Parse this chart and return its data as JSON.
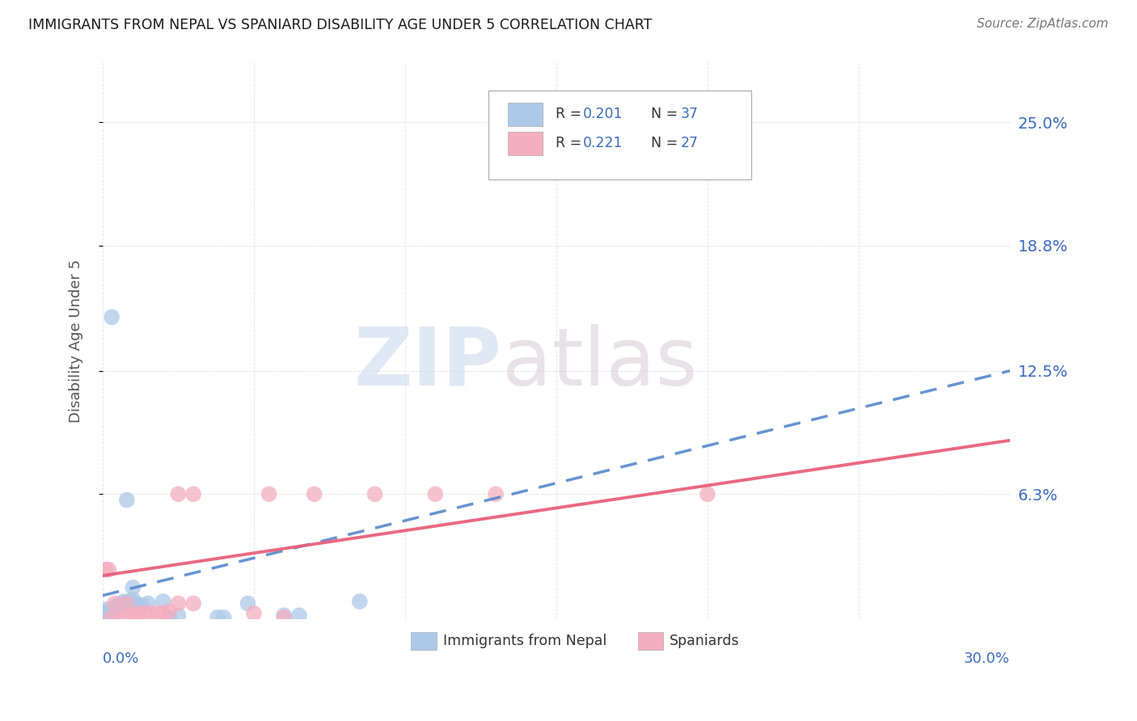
{
  "title": "IMMIGRANTS FROM NEPAL VS SPANIARD DISABILITY AGE UNDER 5 CORRELATION CHART",
  "source": "Source: ZipAtlas.com",
  "ylabel": "Disability Age Under 5",
  "legend_r1": "0.201",
  "legend_n1": "37",
  "legend_r2": "0.221",
  "legend_n2": "27",
  "nepal_points": [
    [
      0.001,
      0.001
    ],
    [
      0.002,
      0.001
    ],
    [
      0.003,
      0.001
    ],
    [
      0.004,
      0.001
    ],
    [
      0.001,
      0.002
    ],
    [
      0.002,
      0.002
    ],
    [
      0.003,
      0.002
    ],
    [
      0.001,
      0.003
    ],
    [
      0.002,
      0.003
    ],
    [
      0.002,
      0.004
    ],
    [
      0.003,
      0.004
    ],
    [
      0.001,
      0.005
    ],
    [
      0.003,
      0.005
    ],
    [
      0.004,
      0.006
    ],
    [
      0.005,
      0.006
    ],
    [
      0.005,
      0.007
    ],
    [
      0.006,
      0.007
    ],
    [
      0.007,
      0.008
    ],
    [
      0.008,
      0.008
    ],
    [
      0.007,
      0.009
    ],
    [
      0.009,
      0.009
    ],
    [
      0.01,
      0.01
    ],
    [
      0.011,
      0.008
    ],
    [
      0.013,
      0.007
    ],
    [
      0.015,
      0.008
    ],
    [
      0.02,
      0.009
    ],
    [
      0.022,
      0.001
    ],
    [
      0.025,
      0.002
    ],
    [
      0.038,
      0.001
    ],
    [
      0.04,
      0.001
    ],
    [
      0.003,
      0.152
    ],
    [
      0.048,
      0.008
    ],
    [
      0.085,
      0.009
    ],
    [
      0.01,
      0.016
    ],
    [
      0.06,
      0.002
    ],
    [
      0.065,
      0.002
    ],
    [
      0.008,
      0.06
    ]
  ],
  "spaniard_points": [
    [
      0.003,
      0.001
    ],
    [
      0.006,
      0.001
    ],
    [
      0.008,
      0.002
    ],
    [
      0.01,
      0.002
    ],
    [
      0.011,
      0.002
    ],
    [
      0.012,
      0.003
    ],
    [
      0.014,
      0.003
    ],
    [
      0.016,
      0.003
    ],
    [
      0.018,
      0.003
    ],
    [
      0.02,
      0.003
    ],
    [
      0.022,
      0.004
    ],
    [
      0.004,
      0.008
    ],
    [
      0.008,
      0.008
    ],
    [
      0.025,
      0.008
    ],
    [
      0.03,
      0.008
    ],
    [
      0.001,
      0.025
    ],
    [
      0.002,
      0.025
    ],
    [
      0.025,
      0.063
    ],
    [
      0.03,
      0.063
    ],
    [
      0.05,
      0.003
    ],
    [
      0.06,
      0.001
    ],
    [
      0.07,
      0.063
    ],
    [
      0.09,
      0.063
    ],
    [
      0.11,
      0.063
    ],
    [
      0.055,
      0.063
    ],
    [
      0.13,
      0.063
    ],
    [
      0.2,
      0.063
    ]
  ],
  "nepal_color": "#adc9e8",
  "spaniard_color": "#f5aec0",
  "nepal_line_color": "#5588cc",
  "spaniard_line_color": "#e8607a",
  "background_color": "#ffffff",
  "grid_color": "#e0e0e0",
  "title_color": "#1a1a1a",
  "r_color": "#3a6bbf",
  "n_color": "#3a6bbf",
  "axis_label_color": "#3a6bbf",
  "ytick_vals": [
    0.063,
    0.125,
    0.188,
    0.25
  ],
  "ytick_labels": [
    "6.3%",
    "12.5%",
    "18.8%",
    "25.0%"
  ],
  "xlim": [
    0.0,
    0.3
  ],
  "ylim": [
    0.0,
    0.28
  ],
  "nepal_line_x0": 0.0,
  "nepal_line_y0": 0.012,
  "nepal_line_x1": 0.3,
  "nepal_line_y1": 0.125,
  "spaniard_line_x0": 0.0,
  "spaniard_line_y0": 0.022,
  "spaniard_line_x1": 0.3,
  "spaniard_line_y1": 0.09
}
